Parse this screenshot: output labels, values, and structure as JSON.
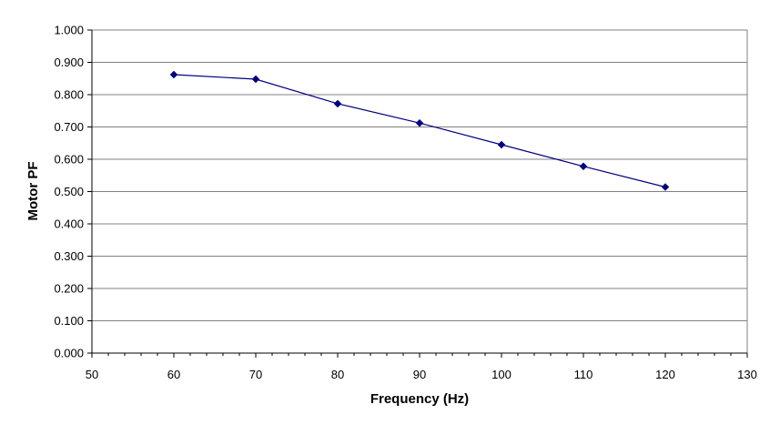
{
  "chart_data": {
    "type": "line",
    "title": "",
    "xlabel": "Frequency (Hz)",
    "ylabel": "Motor PF",
    "xlim": [
      50,
      130
    ],
    "ylim": [
      0,
      1
    ],
    "x_ticks": [
      "50",
      "60",
      "70",
      "80",
      "90",
      "100",
      "110",
      "120",
      "130"
    ],
    "y_ticks": [
      "0.000",
      "0.100",
      "0.200",
      "0.300",
      "0.400",
      "0.500",
      "0.600",
      "0.700",
      "0.800",
      "0.900",
      "1.000"
    ],
    "grid": "horizontal",
    "legend": "none",
    "series": [
      {
        "x": [
          60,
          70,
          80,
          90,
          100,
          110,
          120
        ],
        "values": [
          0.862,
          0.848,
          0.772,
          0.712,
          0.645,
          0.578,
          0.514
        ],
        "color": "#000080",
        "marker": "diamond"
      }
    ]
  }
}
